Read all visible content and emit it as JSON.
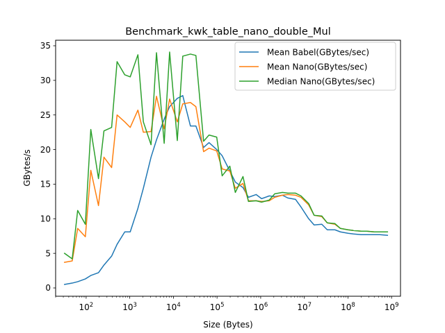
{
  "chart_data": {
    "type": "line",
    "title": "Benchmark_kwk_table_nano_double_Mul",
    "xlabel": "Size (Bytes)",
    "ylabel": "GBytes/s",
    "xscale": "log",
    "xlim": [
      20,
      1600000000
    ],
    "ylim": [
      -1.2,
      35.8
    ],
    "yticks": [
      0,
      5,
      10,
      15,
      20,
      25,
      30,
      35
    ],
    "xticks": [
      {
        "value": 100,
        "base": "10",
        "exp": "2"
      },
      {
        "value": 1000,
        "base": "10",
        "exp": "3"
      },
      {
        "value": 10000,
        "base": "10",
        "exp": "4"
      },
      {
        "value": 100000,
        "base": "10",
        "exp": "5"
      },
      {
        "value": 1000000,
        "base": "10",
        "exp": "6"
      },
      {
        "value": 10000000,
        "base": "10",
        "exp": "7"
      },
      {
        "value": 100000000,
        "base": "10",
        "exp": "8"
      },
      {
        "value": 1000000000,
        "base": "10",
        "exp": "9"
      }
    ],
    "grid": false,
    "legend_position": "top-right",
    "x": [
      32,
      48,
      64,
      96,
      128,
      192,
      256,
      384,
      512,
      768,
      1024,
      1536,
      2048,
      3072,
      4096,
      6144,
      8192,
      12288,
      16384,
      24576,
      32768,
      49152,
      65536,
      98304,
      131072,
      196608,
      262144,
      393216,
      524288,
      786432,
      1048576,
      1572864,
      2097152,
      3145728,
      4194304,
      6291456,
      8388608,
      12582912,
      16777216,
      25165824,
      33554432,
      50331648,
      67108864,
      100663296,
      134217728,
      201326592,
      268435456,
      402653184,
      536870912,
      805306368
    ],
    "series": [
      {
        "name": "Mean Babel(GBytes/sec)",
        "color": "#1f77b4",
        "values": [
          0.5,
          0.7,
          0.9,
          1.3,
          1.8,
          2.2,
          3.3,
          4.6,
          6.3,
          8.1,
          8.1,
          11.5,
          14.4,
          18.9,
          21.4,
          24.4,
          26.2,
          27.4,
          27.8,
          23.4,
          23.4,
          20.3,
          21.0,
          20.0,
          19.1,
          16.9,
          15.3,
          14.5,
          13.1,
          13.5,
          12.9,
          13.3,
          13.2,
          13.4,
          13.0,
          12.8,
          11.7,
          10.0,
          9.1,
          9.2,
          8.4,
          8.4,
          8.1,
          7.9,
          7.8,
          7.7,
          7.7,
          7.7,
          7.7,
          7.6
        ],
        "label": "Mean Babel(GBytes/sec)"
      },
      {
        "name": "Mean Nano(GBytes/sec)",
        "color": "#ff7f0e",
        "values": [
          3.7,
          3.9,
          8.6,
          7.4,
          17.0,
          11.9,
          18.9,
          17.4,
          25.0,
          24.0,
          23.2,
          25.7,
          22.5,
          22.6,
          27.7,
          23.0,
          27.3,
          24.0,
          26.6,
          26.8,
          26.2,
          19.7,
          20.2,
          19.8,
          17.2,
          16.9,
          14.4,
          15.1,
          12.6,
          12.6,
          12.5,
          12.6,
          13.1,
          13.4,
          13.5,
          13.4,
          13.1,
          12.0,
          10.5,
          10.3,
          9.4,
          9.2,
          8.6,
          8.4,
          8.3,
          8.2,
          8.2,
          8.1,
          8.1,
          8.1
        ],
        "label": "Mean Nano(GBytes/sec)"
      },
      {
        "name": "Median Nano(GBytes/sec)",
        "color": "#2ca02c",
        "values": [
          5.0,
          4.2,
          11.2,
          9.2,
          22.9,
          15.8,
          22.7,
          23.2,
          32.7,
          30.8,
          30.5,
          33.7,
          24.0,
          20.7,
          34.0,
          20.9,
          34.1,
          21.3,
          33.5,
          33.8,
          33.6,
          21.2,
          22.1,
          21.8,
          16.2,
          17.6,
          13.8,
          16.1,
          12.5,
          12.6,
          12.4,
          12.7,
          13.6,
          13.8,
          13.7,
          13.7,
          13.3,
          12.2,
          10.5,
          10.4,
          9.4,
          9.3,
          8.6,
          8.4,
          8.3,
          8.2,
          8.2,
          8.1,
          8.1,
          8.1
        ],
        "label": "Median Nano(GBytes/sec)"
      }
    ]
  }
}
